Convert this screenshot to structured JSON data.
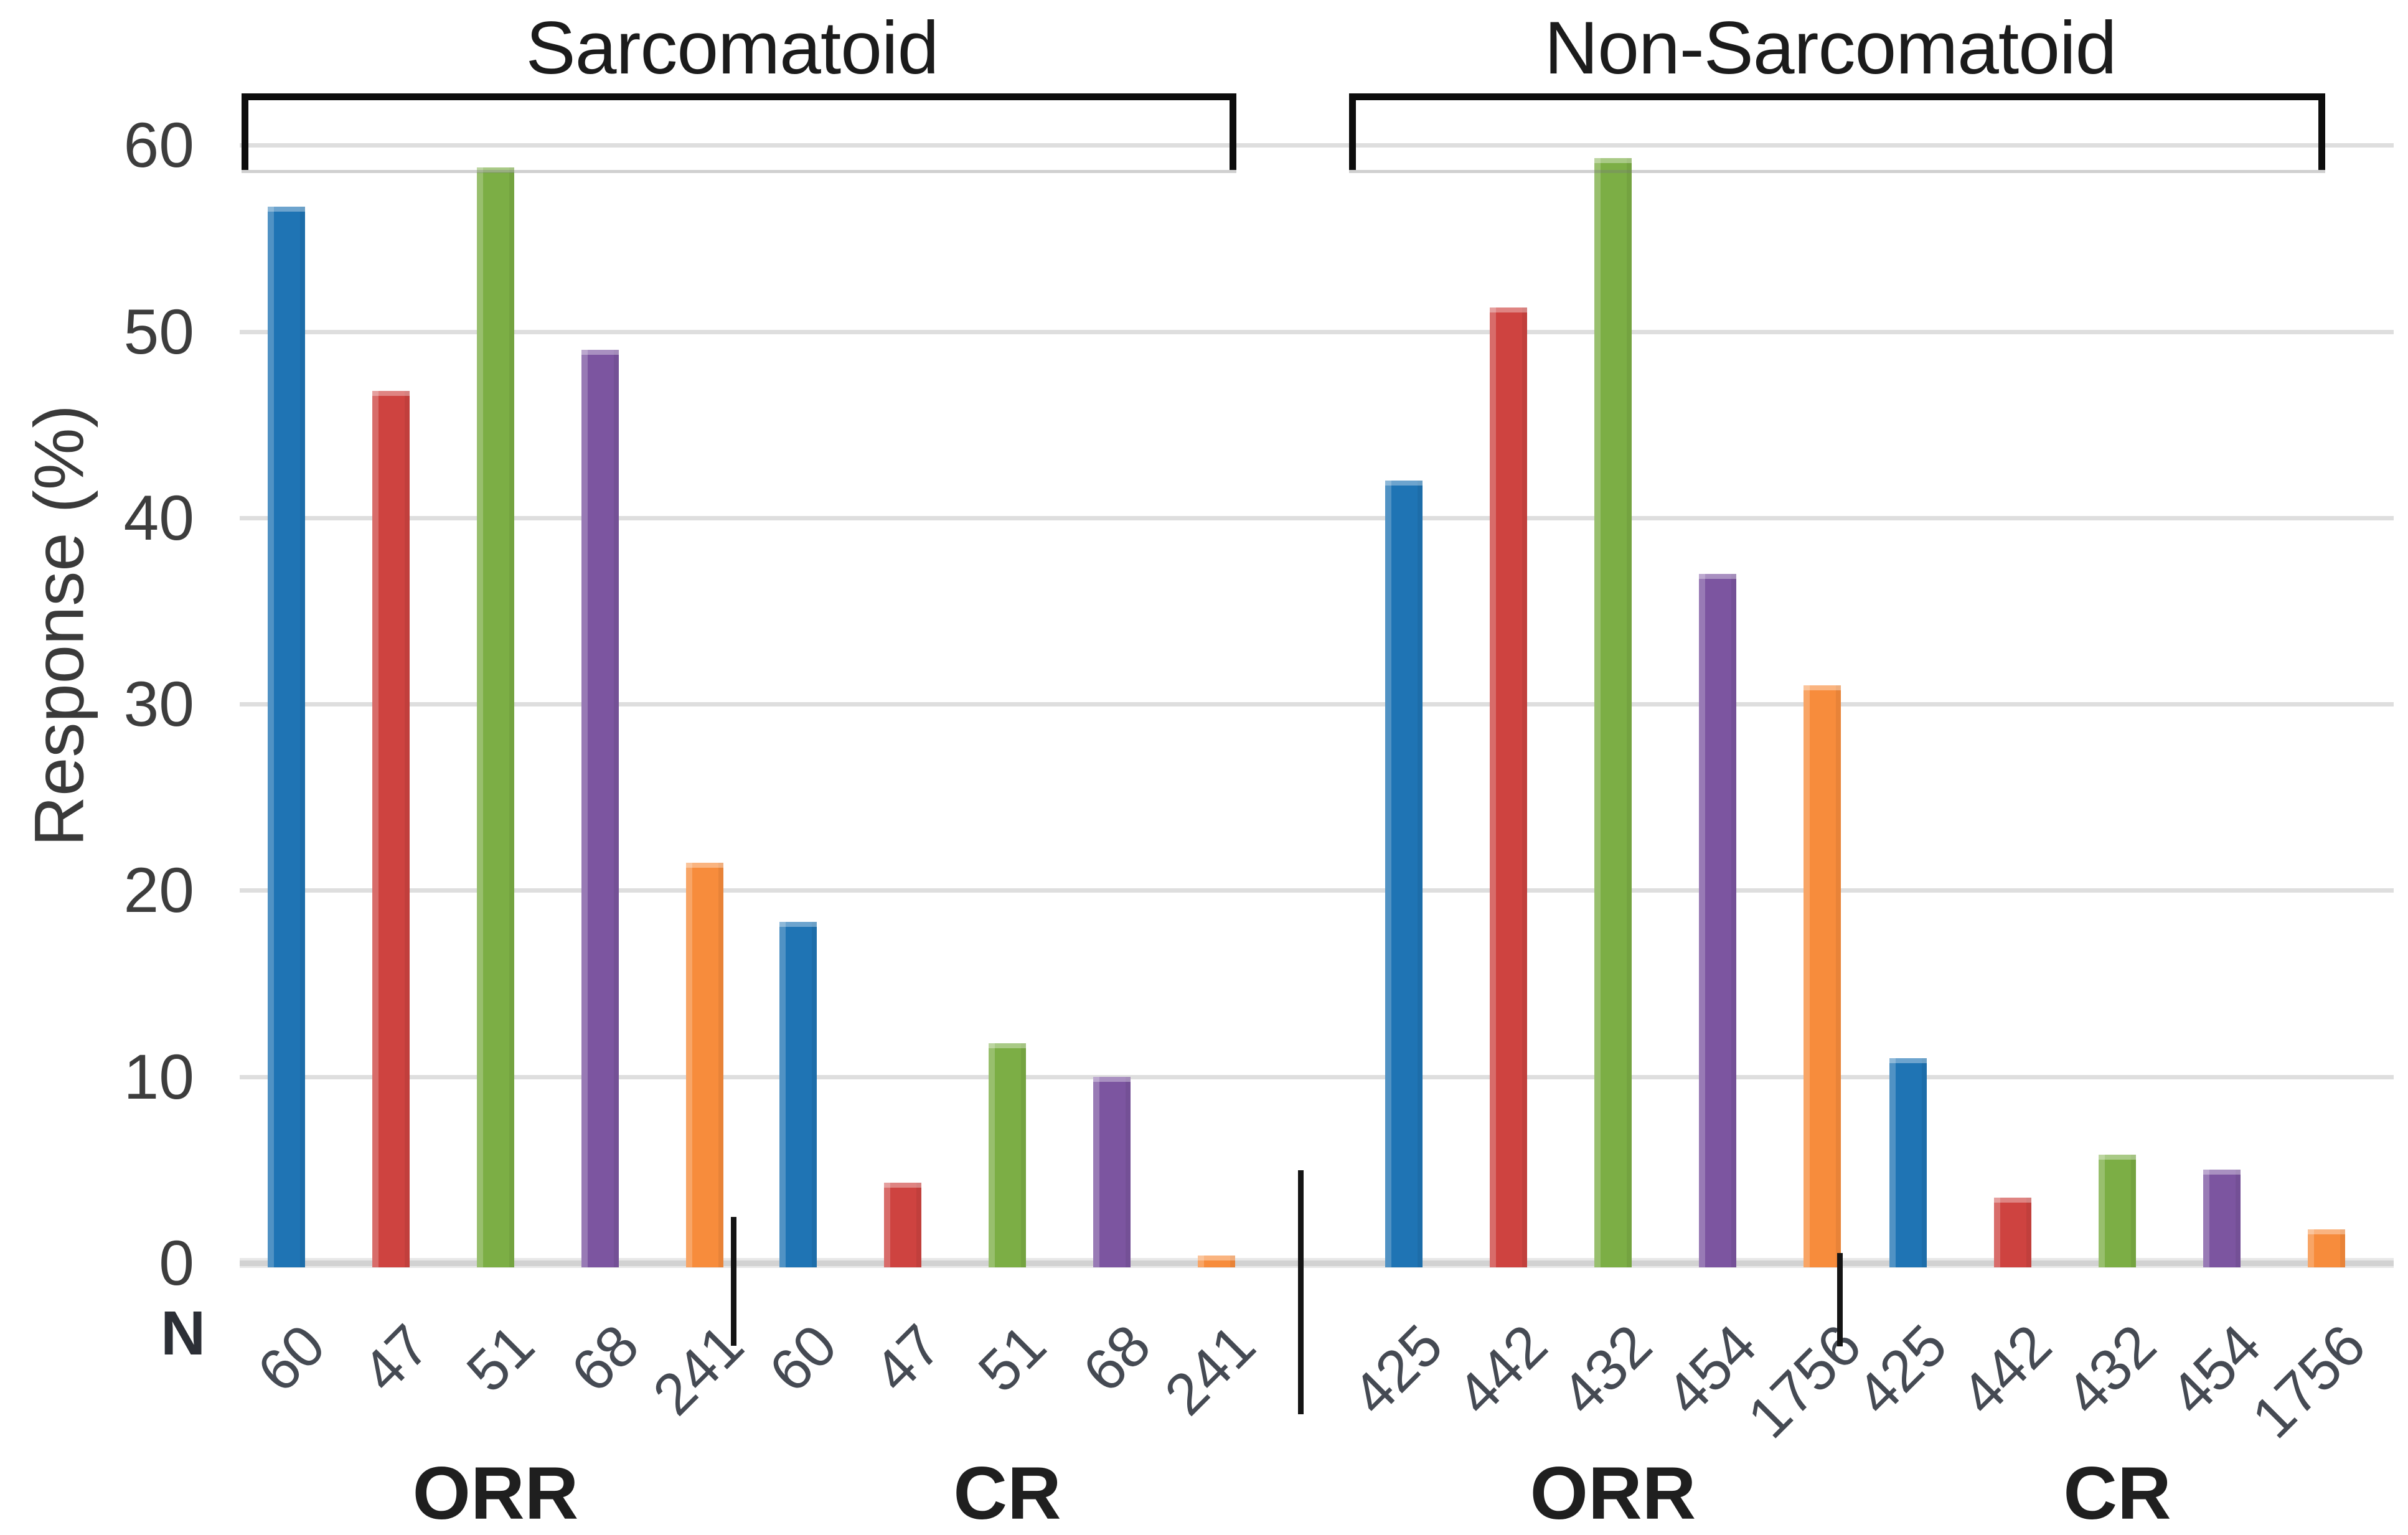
{
  "chart_data": {
    "type": "bar",
    "ylabel": "Response (%)",
    "n_label": "N",
    "ylim": [
      0,
      60
    ],
    "yticks": [
      0,
      10,
      20,
      30,
      40,
      50,
      60
    ],
    "grid": true,
    "legend": "none",
    "bar_colors": [
      "#1F74B4",
      "#CE4340",
      "#7CAE45",
      "#7C55A0",
      "#F78C3C"
    ],
    "panels": [
      {
        "title": "Sarcomatoid",
        "groups": [
          {
            "label": "ORR",
            "categories": [
              "60",
              "47",
              "51",
              "68",
              "241"
            ],
            "values": [
              56.7,
              46.8,
              58.8,
              49,
              21.5
            ]
          },
          {
            "label": "CR",
            "categories": [
              "60",
              "47",
              "51",
              "68",
              "241"
            ],
            "values": [
              18.3,
              4.3,
              11.8,
              10,
              0.4
            ]
          }
        ]
      },
      {
        "title": "Non-Sarcomatoid",
        "groups": [
          {
            "label": "ORR",
            "categories": [
              "425",
              "442",
              "432",
              "454",
              "1756"
            ],
            "values": [
              42,
              51.3,
              59.3,
              37,
              31
            ]
          },
          {
            "label": "CR",
            "categories": [
              "425",
              "442",
              "432",
              "454",
              "1756"
            ],
            "values": [
              11,
              3.5,
              5.8,
              5,
              1.8
            ]
          }
        ]
      }
    ]
  }
}
